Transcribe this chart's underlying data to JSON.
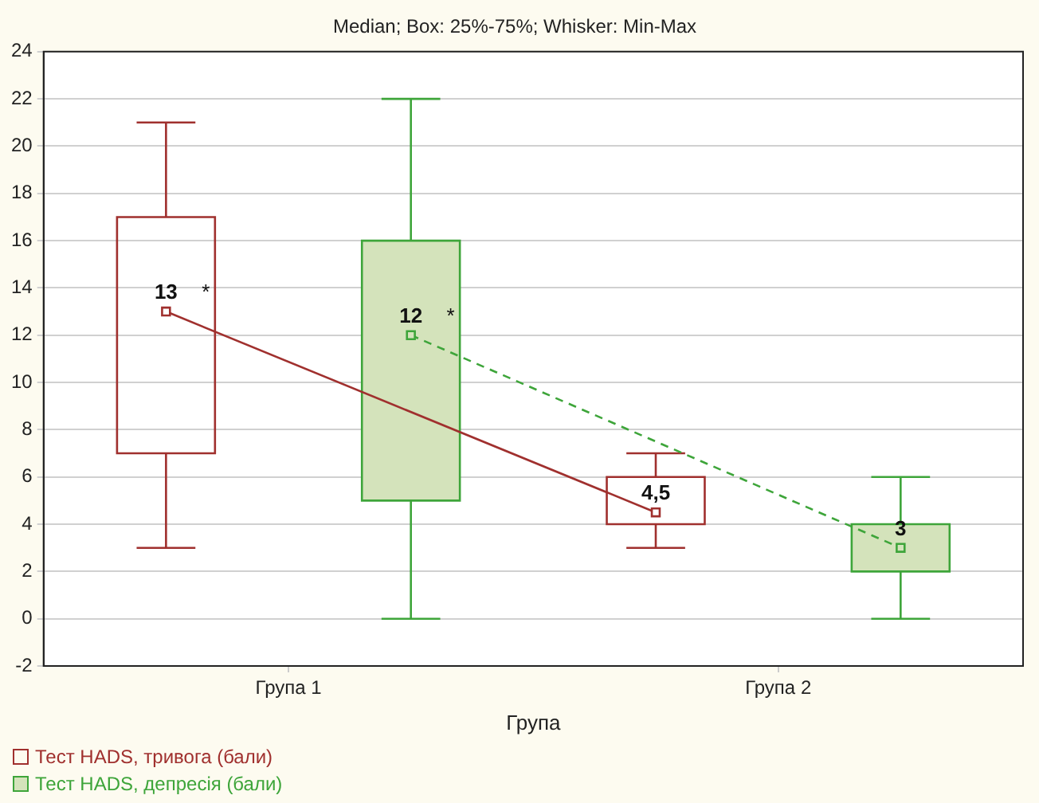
{
  "chart_data": {
    "type": "box",
    "title": "Median; Box: 25%-75%; Whisker: Min-Max",
    "xlabel": "Група",
    "categories": [
      "Група 1",
      "Група 2"
    ],
    "ylim": [
      -2,
      24
    ],
    "yticks": [
      -2,
      0,
      2,
      4,
      6,
      8,
      10,
      12,
      14,
      16,
      18,
      20,
      22,
      24
    ],
    "grid": "y",
    "legend": "bottom left",
    "marker": "square",
    "series": [
      {
        "name": "Тест HADS, тривога (бали)",
        "color": "#a0302e",
        "line_style": "solid",
        "value_labels": [
          "13",
          "4,5"
        ],
        "boxes": [
          {
            "low": 3,
            "q1": 7,
            "median": 13,
            "q3": 17,
            "high": 21
          },
          {
            "low": 3,
            "q1": 4,
            "median": 4.5,
            "q3": 6,
            "high": 7
          }
        ]
      },
      {
        "name": "Тест HADS, депресія (бали)",
        "color": "#3ea53a",
        "colors": [
          "#d4e3bb",
          "#d4e3bb"
        ],
        "line_style": "dashed",
        "value_labels": [
          "12",
          "3"
        ],
        "boxes": [
          {
            "low": 0,
            "q1": 5,
            "median": 12,
            "q3": 16,
            "high": 22
          },
          {
            "low": 0,
            "q1": 2,
            "median": 3,
            "q3": 4,
            "high": 6
          }
        ]
      }
    ],
    "annotations": [
      "*",
      "*"
    ]
  }
}
